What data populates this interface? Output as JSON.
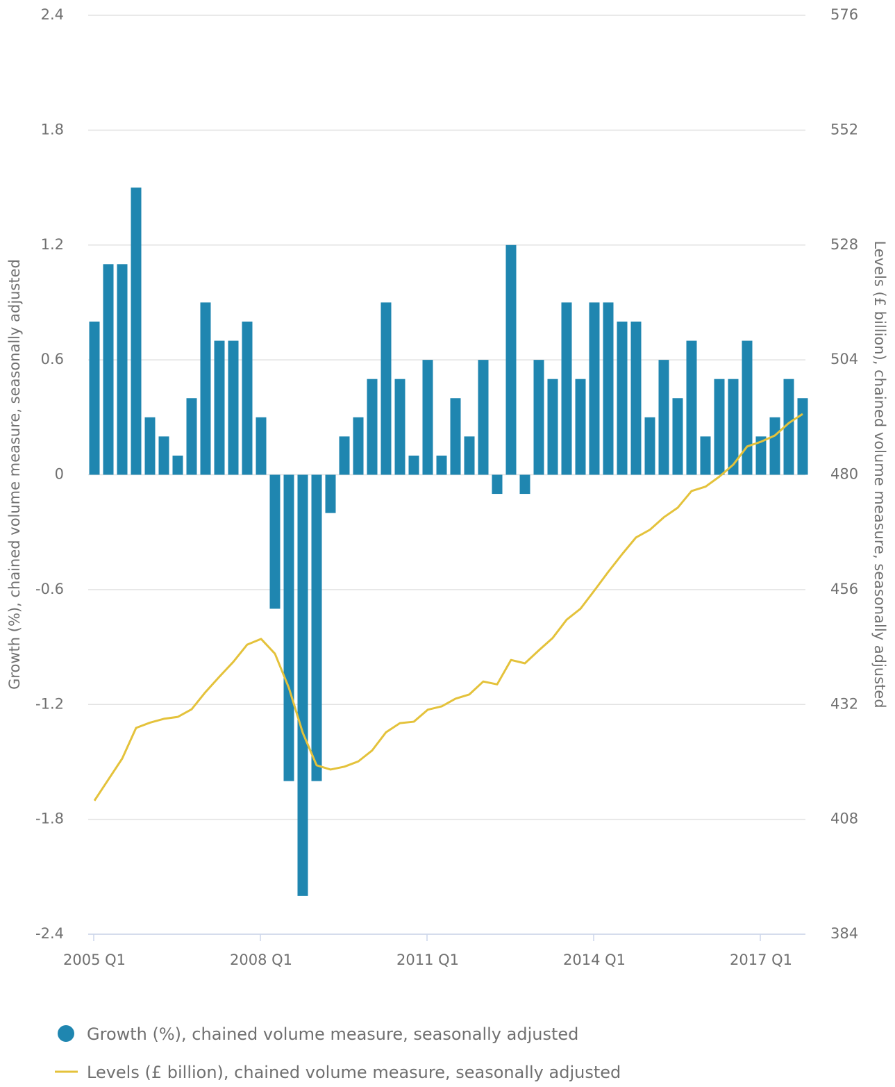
{
  "chart_data": {
    "type": "bar",
    "categories": [
      "2005 Q1",
      null,
      null,
      null,
      null,
      null,
      null,
      null,
      null,
      null,
      null,
      null,
      "2008 Q1",
      null,
      null,
      null,
      null,
      null,
      null,
      null,
      null,
      null,
      null,
      null,
      "2011 Q1",
      null,
      null,
      null,
      null,
      null,
      null,
      null,
      null,
      null,
      null,
      null,
      "2014 Q1",
      null,
      null,
      null,
      null,
      null,
      null,
      null,
      null,
      null,
      null,
      null,
      "2017 Q1",
      null,
      null,
      null
    ],
    "series": [
      {
        "name": "Growth (%), chained volume measure, seasonally adjusted",
        "type": "bar",
        "color": "#1f86b0",
        "values": [
          0.8,
          1.1,
          1.1,
          1.5,
          0.3,
          0.2,
          0.1,
          0.4,
          0.9,
          0.7,
          0.7,
          0.8,
          0.3,
          -0.7,
          -1.6,
          -2.2,
          -1.6,
          -0.2,
          0.2,
          0.3,
          0.5,
          0.9,
          0.5,
          0.1,
          0.6,
          0.1,
          0.4,
          0.2,
          0.6,
          -0.1,
          1.2,
          -0.1,
          0.6,
          0.5,
          0.9,
          0.5,
          0.9,
          0.9,
          0.8,
          0.8,
          0.3,
          0.6,
          0.4,
          0.7,
          0.2,
          0.5,
          0.5,
          0.7,
          0.2,
          0.3,
          0.5,
          0.4
        ]
      },
      {
        "name": "Levels (£ billion), chained volume measure, seasonally adjusted",
        "type": "line",
        "axis": "y2",
        "color": "#e4c23b",
        "values": [
          411.9,
          416.3,
          420.7,
          427.1,
          428.2,
          429.0,
          429.4,
          431.0,
          434.6,
          437.8,
          440.9,
          444.5,
          445.7,
          442.6,
          435.5,
          426.1,
          419.3,
          418.4,
          419.0,
          420.1,
          422.4,
          426.2,
          428.1,
          428.4,
          430.9,
          431.6,
          433.2,
          434.1,
          436.8,
          436.2,
          441.3,
          440.6,
          443.3,
          445.9,
          449.7,
          452.0,
          455.8,
          459.7,
          463.4,
          466.9,
          468.5,
          471.1,
          473.1,
          476.6,
          477.5,
          479.6,
          482.1,
          485.9,
          486.9,
          488.2,
          490.8,
          492.7
        ]
      }
    ],
    "ylabel": "Growth (%), chained volume measure, seasonally adjusted",
    "y2label": "Levels (£ billion), chained volume measure, seasonally adjusted",
    "ylim": [
      -2.4,
      2.4
    ],
    "yticks": [
      2.4,
      1.8,
      1.2,
      0.6,
      0,
      -0.6,
      -1.2,
      -1.8,
      -2.4
    ],
    "y2lim": [
      384,
      576
    ],
    "y2ticks": [
      576,
      552,
      528,
      504,
      480,
      456,
      432,
      408,
      384
    ],
    "grid": true,
    "legend": "bottom"
  }
}
